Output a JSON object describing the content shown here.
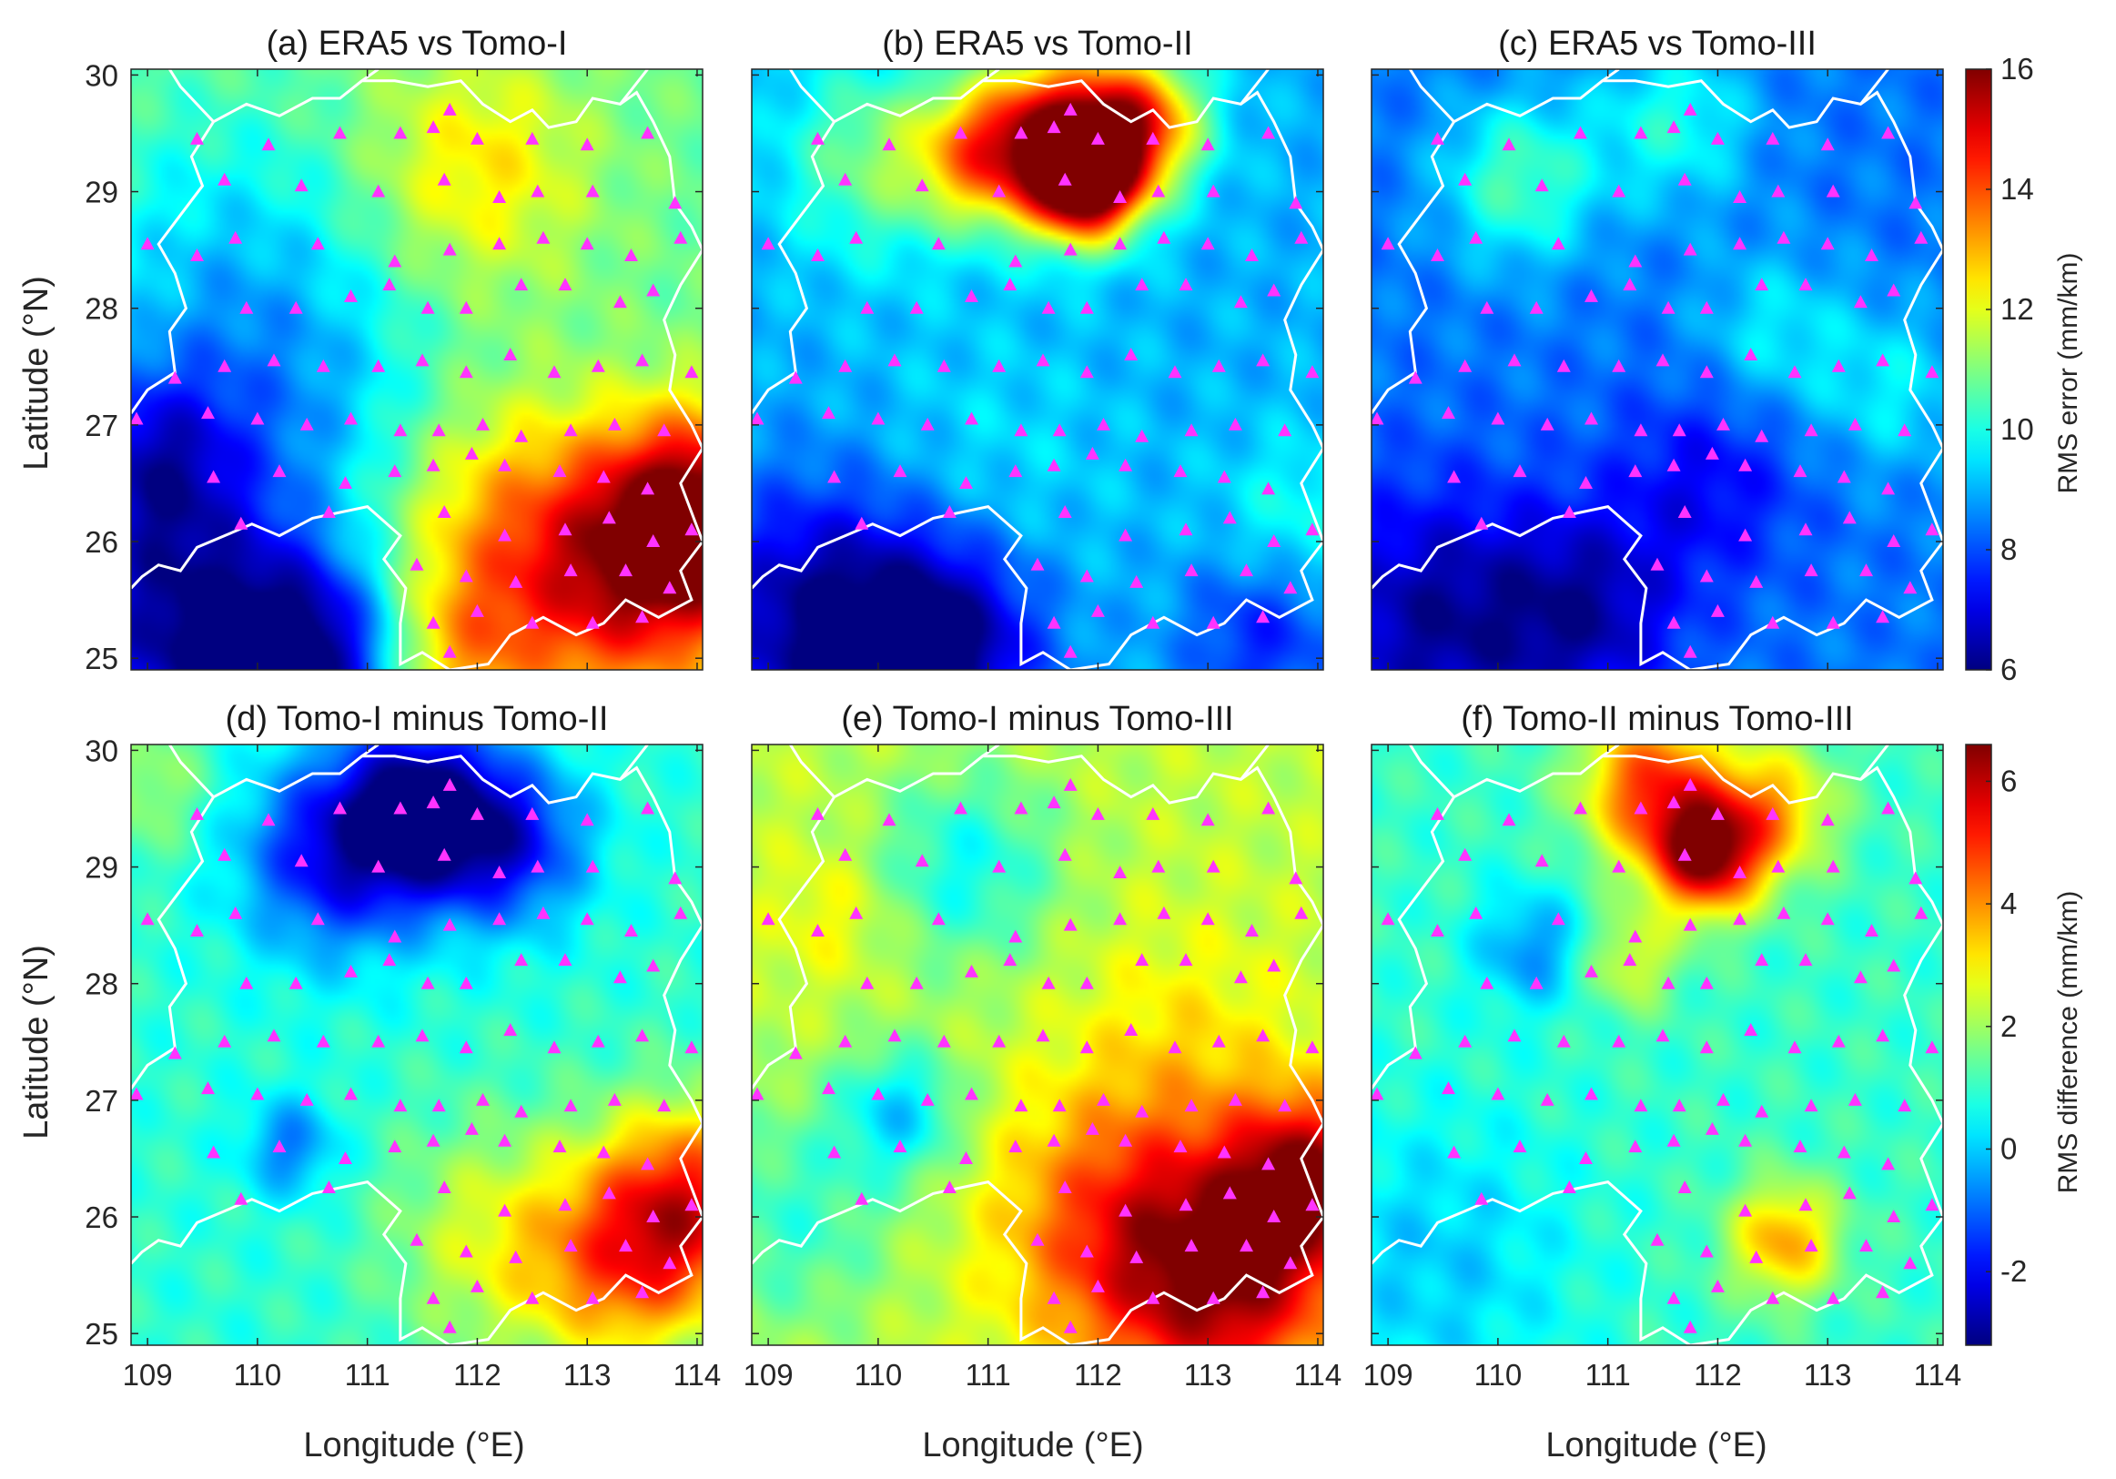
{
  "figure": {
    "xlabel": "Longitude (°E)",
    "ylabel": "Latitude (°N)",
    "x_ticks": [
      "109",
      "110",
      "111",
      "112",
      "113",
      "114"
    ],
    "y_ticks": [
      "25",
      "26",
      "27",
      "28",
      "29",
      "30"
    ],
    "colorbar_top": {
      "label": "RMS error (mm/km)",
      "ticks": [
        "6",
        "8",
        "10",
        "12",
        "14",
        "16"
      ],
      "range": [
        6,
        16
      ],
      "colormap": "jet"
    },
    "colorbar_bottom": {
      "label": "RMS difference (mm/km)",
      "ticks": [
        "-2",
        "0",
        "2",
        "4",
        "6"
      ],
      "range": [
        -3.2,
        6.6
      ],
      "colormap": "jet"
    },
    "colors": {
      "marker": "#ff33ff",
      "boundary": "#ffffff",
      "axis": "#262626"
    }
  },
  "chart_data": [
    {
      "type": "heatmap",
      "title": "(a) ERA5 vs Tomo-I",
      "xlabel": "",
      "ylabel": "Latitude (°N)",
      "xlim": [
        108.85,
        114.05
      ],
      "ylim": [
        24.9,
        30.05
      ],
      "colorbar": "RMS error (mm/km)",
      "crange": [
        6,
        16
      ],
      "hotspots": [
        {
          "lon": 114.0,
          "lat": 26.2,
          "value": 16.0,
          "spread": 0.6
        },
        {
          "lon": 113.3,
          "lat": 25.6,
          "value": 14.0,
          "spread": 0.8
        },
        {
          "lon": 112.2,
          "lat": 26.1,
          "value": 12.8,
          "spread": 0.8
        },
        {
          "lon": 111.8,
          "lat": 25.0,
          "value": 12.5,
          "spread": 0.5
        },
        {
          "lon": 112.0,
          "lat": 29.2,
          "value": 12.5,
          "spread": 0.7
        },
        {
          "lon": 109.3,
          "lat": 25.2,
          "value": 6.5,
          "spread": 0.9
        },
        {
          "lon": 110.5,
          "lat": 25.0,
          "value": 7.0,
          "spread": 0.6
        },
        {
          "lon": 109.0,
          "lat": 26.7,
          "value": 8.0,
          "spread": 0.6
        },
        {
          "lon": 109.7,
          "lat": 28.2,
          "value": 9.3,
          "spread": 1.0
        },
        {
          "lon": 110.5,
          "lat": 27.0,
          "value": 9.5,
          "spread": 0.9
        }
      ],
      "base": 10.8
    },
    {
      "type": "heatmap",
      "title": "(b) ERA5 vs Tomo-II",
      "xlabel": "",
      "ylabel": "",
      "xlim": [
        108.85,
        114.05
      ],
      "ylim": [
        24.9,
        30.05
      ],
      "colorbar": "RMS error (mm/km)",
      "crange": [
        6,
        16
      ],
      "hotspots": [
        {
          "lon": 111.9,
          "lat": 29.1,
          "value": 16.0,
          "spread": 0.35
        },
        {
          "lon": 111.6,
          "lat": 29.5,
          "value": 14.5,
          "spread": 0.5
        },
        {
          "lon": 112.4,
          "lat": 29.6,
          "value": 13.5,
          "spread": 0.4
        },
        {
          "lon": 110.9,
          "lat": 29.3,
          "value": 12.0,
          "spread": 0.4
        },
        {
          "lon": 110.0,
          "lat": 29.3,
          "value": 11.0,
          "spread": 0.6
        },
        {
          "lon": 109.5,
          "lat": 25.3,
          "value": 6.0,
          "spread": 0.8
        },
        {
          "lon": 110.6,
          "lat": 25.1,
          "value": 6.2,
          "spread": 0.6
        },
        {
          "lon": 111.0,
          "lat": 26.7,
          "value": 9.5,
          "spread": 0.8
        },
        {
          "lon": 113.5,
          "lat": 25.2,
          "value": 7.5,
          "spread": 0.5
        },
        {
          "lon": 113.8,
          "lat": 26.2,
          "value": 10.0,
          "spread": 0.5
        }
      ],
      "base": 9.0
    },
    {
      "type": "heatmap",
      "title": "(c) ERA5 vs Tomo-III",
      "xlabel": "",
      "ylabel": "",
      "xlim": [
        108.85,
        114.05
      ],
      "ylim": [
        24.9,
        30.05
      ],
      "colorbar": "RMS error (mm/km)",
      "crange": [
        6,
        16
      ],
      "hotspots": [
        {
          "lon": 110.2,
          "lat": 29.1,
          "value": 10.5,
          "spread": 0.5
        },
        {
          "lon": 111.6,
          "lat": 29.6,
          "value": 10.0,
          "spread": 0.5
        },
        {
          "lon": 112.5,
          "lat": 27.8,
          "value": 9.6,
          "spread": 0.5
        },
        {
          "lon": 113.6,
          "lat": 27.3,
          "value": 9.6,
          "spread": 0.5
        },
        {
          "lon": 109.4,
          "lat": 25.3,
          "value": 6.3,
          "spread": 0.8
        },
        {
          "lon": 110.8,
          "lat": 25.4,
          "value": 6.6,
          "spread": 0.6
        },
        {
          "lon": 111.9,
          "lat": 26.5,
          "value": 7.2,
          "spread": 0.6
        }
      ],
      "base": 8.4
    },
    {
      "type": "heatmap",
      "title": "(d) Tomo-I minus Tomo-II",
      "xlabel": "Longitude (°E)",
      "ylabel": "Latitude (°N)",
      "xlim": [
        108.85,
        114.05
      ],
      "ylim": [
        24.9,
        30.05
      ],
      "colorbar": "RMS difference (mm/km)",
      "crange": [
        -3.2,
        6.6
      ],
      "hotspots": [
        {
          "lon": 111.5,
          "lat": 29.5,
          "value": -3.2,
          "spread": 0.5
        },
        {
          "lon": 110.7,
          "lat": 29.1,
          "value": -2.0,
          "spread": 0.6
        },
        {
          "lon": 112.3,
          "lat": 29.2,
          "value": -1.8,
          "spread": 0.5
        },
        {
          "lon": 113.9,
          "lat": 26.1,
          "value": 5.0,
          "spread": 0.6
        },
        {
          "lon": 113.3,
          "lat": 25.5,
          "value": 3.2,
          "spread": 0.6
        },
        {
          "lon": 112.2,
          "lat": 25.8,
          "value": 2.6,
          "spread": 0.7
        },
        {
          "lon": 110.3,
          "lat": 26.6,
          "value": -0.8,
          "spread": 0.3
        },
        {
          "lon": 109.0,
          "lat": 29.7,
          "value": 2.0,
          "spread": 0.4
        }
      ],
      "base": 0.9
    },
    {
      "type": "heatmap",
      "title": "(e) Tomo-I minus Tomo-III",
      "xlabel": "Longitude (°E)",
      "ylabel": "",
      "xlim": [
        108.85,
        114.05
      ],
      "ylim": [
        24.9,
        30.05
      ],
      "colorbar": "RMS difference (mm/km)",
      "crange": [
        -3.2,
        6.6
      ],
      "hotspots": [
        {
          "lon": 113.9,
          "lat": 26.3,
          "value": 6.3,
          "spread": 0.5
        },
        {
          "lon": 113.2,
          "lat": 25.4,
          "value": 5.5,
          "spread": 0.7
        },
        {
          "lon": 112.3,
          "lat": 25.9,
          "value": 5.0,
          "spread": 0.8
        },
        {
          "lon": 112.8,
          "lat": 27.5,
          "value": 3.0,
          "spread": 0.7
        },
        {
          "lon": 109.6,
          "lat": 28.6,
          "value": 3.0,
          "spread": 0.4
        },
        {
          "lon": 109.2,
          "lat": 26.0,
          "value": 1.0,
          "spread": 0.7
        },
        {
          "lon": 110.2,
          "lat": 26.9,
          "value": 0.2,
          "spread": 0.4
        },
        {
          "lon": 110.8,
          "lat": 29.0,
          "value": 0.6,
          "spread": 0.6
        }
      ],
      "base": 2.3
    },
    {
      "type": "heatmap",
      "title": "(f) Tomo-II minus Tomo-III",
      "xlabel": "Longitude (°E)",
      "ylabel": "",
      "xlim": [
        108.85,
        114.05
      ],
      "ylim": [
        24.9,
        30.05
      ],
      "colorbar": "RMS difference (mm/km)",
      "crange": [
        -3.2,
        6.6
      ],
      "hotspots": [
        {
          "lon": 111.9,
          "lat": 29.1,
          "value": 6.2,
          "spread": 0.35
        },
        {
          "lon": 111.4,
          "lat": 29.7,
          "value": 4.8,
          "spread": 0.45
        },
        {
          "lon": 112.5,
          "lat": 29.5,
          "value": 3.5,
          "spread": 0.4
        },
        {
          "lon": 112.6,
          "lat": 25.8,
          "value": 3.8,
          "spread": 0.35
        },
        {
          "lon": 111.2,
          "lat": 28.2,
          "value": 2.6,
          "spread": 0.3
        },
        {
          "lon": 110.3,
          "lat": 28.3,
          "value": -0.6,
          "spread": 0.35
        },
        {
          "lon": 109.4,
          "lat": 25.6,
          "value": 0.0,
          "spread": 0.9
        }
      ],
      "base": 1.0
    }
  ],
  "stations": [
    [
      109.45,
      29.45
    ],
    [
      110.1,
      29.4
    ],
    [
      110.75,
      29.5
    ],
    [
      111.3,
      29.5
    ],
    [
      111.6,
      29.55
    ],
    [
      111.75,
      29.7
    ],
    [
      112.0,
      29.45
    ],
    [
      112.5,
      29.45
    ],
    [
      113.0,
      29.4
    ],
    [
      113.55,
      29.5
    ],
    [
      109.7,
      29.1
    ],
    [
      110.4,
      29.05
    ],
    [
      111.1,
      29.0
    ],
    [
      111.7,
      29.1
    ],
    [
      112.2,
      28.95
    ],
    [
      112.55,
      29.0
    ],
    [
      113.05,
      29.0
    ],
    [
      113.8,
      28.9
    ],
    [
      109.0,
      28.55
    ],
    [
      109.45,
      28.45
    ],
    [
      109.8,
      28.6
    ],
    [
      110.55,
      28.55
    ],
    [
      111.25,
      28.4
    ],
    [
      111.75,
      28.5
    ],
    [
      112.2,
      28.55
    ],
    [
      112.6,
      28.6
    ],
    [
      113.0,
      28.55
    ],
    [
      113.4,
      28.45
    ],
    [
      113.85,
      28.6
    ],
    [
      109.9,
      28.0
    ],
    [
      110.35,
      28.0
    ],
    [
      110.85,
      28.1
    ],
    [
      111.2,
      28.2
    ],
    [
      111.55,
      28.0
    ],
    [
      111.9,
      28.0
    ],
    [
      112.4,
      28.2
    ],
    [
      112.8,
      28.2
    ],
    [
      113.3,
      28.05
    ],
    [
      113.6,
      28.15
    ],
    [
      109.25,
      27.4
    ],
    [
      109.7,
      27.5
    ],
    [
      110.15,
      27.55
    ],
    [
      110.6,
      27.5
    ],
    [
      111.1,
      27.5
    ],
    [
      111.5,
      27.55
    ],
    [
      111.9,
      27.45
    ],
    [
      112.3,
      27.6
    ],
    [
      112.7,
      27.45
    ],
    [
      113.1,
      27.5
    ],
    [
      113.5,
      27.55
    ],
    [
      113.95,
      27.45
    ],
    [
      108.9,
      27.05
    ],
    [
      109.55,
      27.1
    ],
    [
      110.0,
      27.05
    ],
    [
      110.45,
      27.0
    ],
    [
      110.85,
      27.05
    ],
    [
      111.3,
      26.95
    ],
    [
      111.65,
      26.95
    ],
    [
      112.05,
      27.0
    ],
    [
      112.4,
      26.9
    ],
    [
      112.85,
      26.95
    ],
    [
      113.25,
      27.0
    ],
    [
      113.7,
      26.95
    ],
    [
      109.6,
      26.55
    ],
    [
      110.2,
      26.6
    ],
    [
      110.8,
      26.5
    ],
    [
      111.25,
      26.6
    ],
    [
      111.6,
      26.65
    ],
    [
      111.95,
      26.75
    ],
    [
      112.25,
      26.65
    ],
    [
      112.75,
      26.6
    ],
    [
      113.15,
      26.55
    ],
    [
      113.55,
      26.45
    ],
    [
      109.85,
      26.15
    ],
    [
      110.65,
      26.25
    ],
    [
      111.7,
      26.25
    ],
    [
      112.25,
      26.05
    ],
    [
      112.8,
      26.1
    ],
    [
      113.2,
      26.2
    ],
    [
      113.6,
      26.0
    ],
    [
      113.95,
      26.1
    ],
    [
      111.45,
      25.8
    ],
    [
      111.9,
      25.7
    ],
    [
      112.35,
      25.65
    ],
    [
      112.85,
      25.75
    ],
    [
      113.35,
      25.75
    ],
    [
      113.75,
      25.6
    ],
    [
      111.6,
      25.3
    ],
    [
      112.0,
      25.4
    ],
    [
      112.5,
      25.3
    ],
    [
      113.05,
      25.3
    ],
    [
      113.5,
      25.35
    ],
    [
      111.75,
      25.05
    ]
  ],
  "boundary": [
    [
      108.85,
      27.1
    ],
    [
      109.0,
      27.3
    ],
    [
      109.25,
      27.45
    ],
    [
      109.2,
      27.8
    ],
    [
      109.35,
      28.0
    ],
    [
      109.25,
      28.3
    ],
    [
      109.1,
      28.55
    ],
    [
      109.3,
      28.8
    ],
    [
      109.5,
      29.05
    ],
    [
      109.4,
      29.3
    ],
    [
      109.6,
      29.6
    ],
    [
      109.9,
      29.75
    ],
    [
      110.2,
      29.65
    ],
    [
      110.5,
      29.8
    ],
    [
      110.75,
      29.8
    ],
    [
      110.95,
      29.95
    ],
    [
      111.25,
      29.95
    ],
    [
      111.55,
      29.9
    ],
    [
      111.85,
      29.95
    ],
    [
      112.05,
      29.75
    ],
    [
      112.3,
      29.6
    ],
    [
      112.5,
      29.7
    ],
    [
      112.65,
      29.55
    ],
    [
      112.9,
      29.6
    ],
    [
      113.05,
      29.8
    ],
    [
      113.3,
      29.75
    ],
    [
      113.45,
      29.85
    ],
    [
      113.6,
      29.6
    ],
    [
      113.75,
      29.3
    ],
    [
      113.8,
      28.9
    ],
    [
      113.95,
      28.7
    ],
    [
      114.05,
      28.5
    ],
    [
      113.85,
      28.2
    ],
    [
      113.7,
      27.9
    ],
    [
      113.8,
      27.6
    ],
    [
      113.75,
      27.3
    ],
    [
      113.95,
      27.0
    ],
    [
      114.05,
      26.8
    ],
    [
      113.85,
      26.5
    ],
    [
      113.95,
      26.25
    ],
    [
      114.05,
      26.0
    ],
    [
      113.85,
      25.75
    ],
    [
      113.95,
      25.5
    ],
    [
      113.65,
      25.35
    ],
    [
      113.35,
      25.5
    ],
    [
      113.15,
      25.3
    ],
    [
      112.9,
      25.2
    ],
    [
      112.6,
      25.35
    ],
    [
      112.3,
      25.2
    ],
    [
      112.1,
      24.95
    ],
    [
      111.75,
      24.9
    ],
    [
      111.5,
      25.05
    ],
    [
      111.3,
      24.95
    ],
    [
      111.3,
      25.3
    ],
    [
      111.35,
      25.6
    ],
    [
      111.15,
      25.85
    ],
    [
      111.3,
      26.05
    ],
    [
      111.0,
      26.3
    ],
    [
      110.75,
      26.25
    ],
    [
      110.5,
      26.2
    ],
    [
      110.2,
      26.05
    ],
    [
      109.95,
      26.15
    ],
    [
      109.7,
      26.05
    ],
    [
      109.45,
      25.95
    ],
    [
      109.3,
      25.75
    ],
    [
      109.1,
      25.8
    ],
    [
      108.95,
      25.7
    ],
    [
      108.85,
      25.6
    ]
  ],
  "boundary2": [
    [
      109.6,
      29.6
    ],
    [
      109.3,
      29.9
    ],
    [
      109.2,
      30.05
    ]
  ],
  "boundary3": [
    [
      110.95,
      29.95
    ],
    [
      111.1,
      30.05
    ]
  ],
  "boundary4": [
    [
      113.3,
      29.75
    ],
    [
      113.55,
      30.05
    ]
  ]
}
